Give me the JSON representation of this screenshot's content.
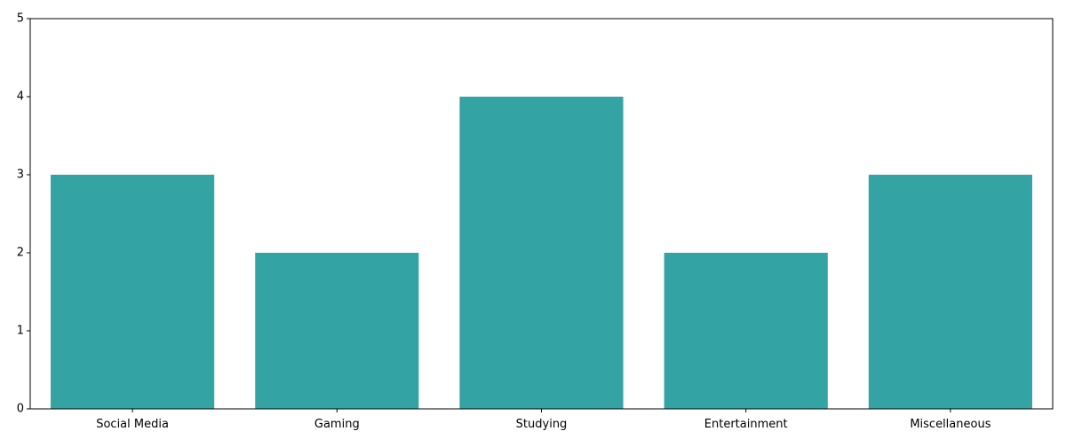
{
  "chart_data": {
    "type": "bar",
    "categories": [
      "Social Media",
      "Gaming",
      "Studying",
      "Entertainment",
      "Miscellaneous"
    ],
    "values": [
      3,
      2,
      4,
      2,
      3
    ],
    "yticks": [
      "0",
      "1",
      "2",
      "3",
      "4",
      "5"
    ],
    "ylim": [
      0,
      5
    ],
    "bar_color": "#33a3a3",
    "grid": false,
    "legend": false
  }
}
